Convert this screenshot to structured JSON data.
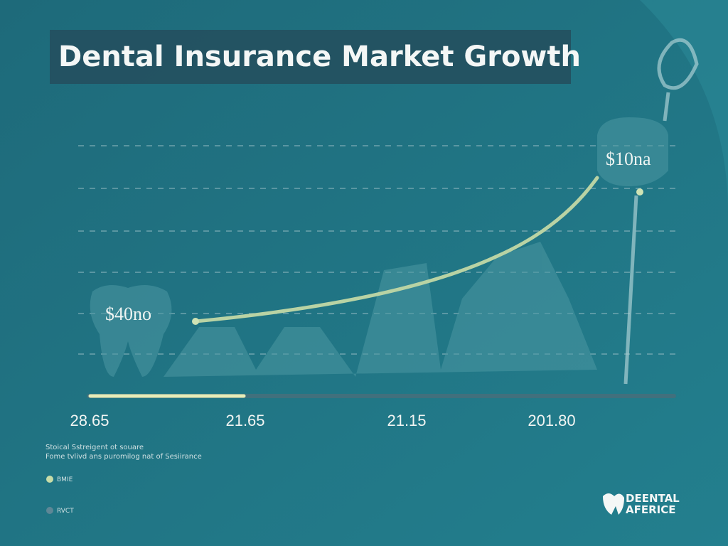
{
  "title": "Dental Insurance Market Growth",
  "callouts": [
    "$40no",
    "$10na"
  ],
  "x_labels": [
    "28.65",
    "21.65",
    "21.15",
    "201.80"
  ],
  "notes": [
    "Stoical Sstreigent ot souare",
    "Fome tvlivd ans puromilog nat of Sesiirance"
  ],
  "legend": [
    "BMIE",
    "RVCT"
  ],
  "logo": [
    "DEENTAL",
    "AFERICE"
  ]
}
